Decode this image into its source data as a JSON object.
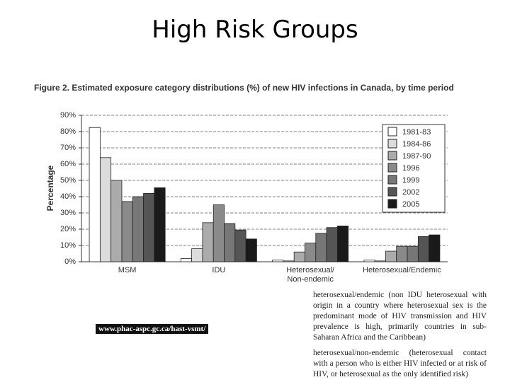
{
  "slide_title": "High Risk Groups",
  "chart_data": {
    "type": "bar",
    "title": "Figure 2.  Estimated exposure category distributions (%) of new HIV infections in Canada, by time period",
    "y_label": "Percentage",
    "categories": [
      "MSM",
      "IDU",
      "Heterosexual/ Non-endemic",
      "Heterosexual/Endemic"
    ],
    "series": [
      {
        "name": "1981-83",
        "color": "#ffffff",
        "values": [
          82.5,
          2,
          1,
          1
        ]
      },
      {
        "name": "1984-86",
        "color": "#dcdcdc",
        "values": [
          64,
          8,
          0.5,
          0.5
        ]
      },
      {
        "name": "1987-90",
        "color": "#ababab",
        "values": [
          50,
          24,
          6,
          6.5
        ]
      },
      {
        "name": "1996",
        "color": "#8a8a8a",
        "values": [
          37,
          35,
          11.5,
          9.5
        ]
      },
      {
        "name": "1999",
        "color": "#777777",
        "values": [
          40,
          23.5,
          17.5,
          9.5
        ]
      },
      {
        "name": "2002",
        "color": "#555555",
        "values": [
          42,
          19.5,
          21,
          15.5
        ]
      },
      {
        "name": "2005",
        "color": "#1a1a1a",
        "values": [
          45.5,
          14,
          22,
          16.5
        ]
      }
    ],
    "ylim": [
      0,
      90
    ],
    "yticks": [
      {
        "value": 0,
        "label": "0%"
      },
      {
        "value": 10,
        "label": "10%"
      },
      {
        "value": 20,
        "label": "20%"
      },
      {
        "value": 30,
        "label": "30%"
      },
      {
        "value": 40,
        "label": "40%"
      },
      {
        "value": 50,
        "label": "50%"
      },
      {
        "value": 60,
        "label": "60%"
      },
      {
        "value": 70,
        "label": "70%"
      },
      {
        "value": 80,
        "label": "80%"
      },
      {
        "value": 90,
        "label": "90%"
      }
    ],
    "grid": true,
    "legend": "upper right"
  },
  "source": "www.phac-aspc.gc.ca/hast-vsmt/",
  "notes": [
    "heterosexual/endemic (non IDU heterosexual with origin in a country where heterosexual sex is the predominant mode of HIV transmission and HIV prevalence is high, primarily countries in sub-Saharan Africa and the Caribbean)",
    "heterosexual/non-endemic (heterosexual contact with a person who is either HIV infected or at risk of HIV, or heterosexual as the only identified risk)"
  ]
}
